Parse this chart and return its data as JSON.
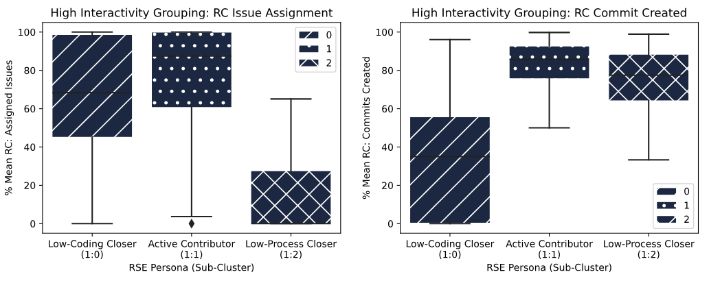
{
  "chart_data": [
    {
      "type": "box",
      "title": "High Interactivity Grouping: RC Issue Assignment",
      "xlabel": "RSE Persona (Sub-Cluster)",
      "ylabel": "% Mean RC: Assigned Issues",
      "categories": [
        "Low-Coding Closer\n(1:0)",
        "Active Contributor\n(1:1)",
        "Low-Process Closer\n(1:2)"
      ],
      "ylim": [
        -5,
        105
      ],
      "yticks": [
        0,
        20,
        40,
        60,
        80,
        100
      ],
      "legend": "top right",
      "grid": false,
      "series": [
        {
          "name": "0",
          "color": "#1c2841",
          "boxes": [
            {
              "low": 0,
              "q1": 45.3,
              "median": 68.4,
              "q3": 98.5,
              "high": 100
            },
            null,
            null
          ]
        },
        {
          "name": "1",
          "color": "#1c2841",
          "boxes": [
            null,
            {
              "low": 3.7,
              "q1": 60.8,
              "median": 87.5,
              "q3": 99.7,
              "high": 100,
              "outliers": [
                0
              ]
            },
            null
          ]
        },
        {
          "name": "2",
          "color": "#1c2841",
          "boxes": [
            null,
            null,
            {
              "low": 0,
              "q1": 0,
              "median": 0,
              "q3": 27.4,
              "high": 65.1
            }
          ]
        }
      ]
    },
    {
      "type": "box",
      "title": "High Interactivity Grouping: RC Commit Created",
      "xlabel": "RSE Persona (Sub-Cluster)",
      "ylabel": "% Mean RC: Commits Created",
      "categories": [
        "Low-Coding Closer\n(1:0)",
        "Active Contributor\n(1:1)",
        "Low-Process Closer\n(1:2)"
      ],
      "ylim": [
        -5,
        105
      ],
      "yticks": [
        0,
        20,
        40,
        60,
        80,
        100
      ],
      "legend": "bottom right",
      "grid": false,
      "series": [
        {
          "name": "0",
          "color": "#1c2841",
          "boxes": [
            {
              "low": 0,
              "q1": 0.5,
              "median": 35.0,
              "q3": 55.6,
              "high": 96.1
            },
            null,
            null
          ]
        },
        {
          "name": "1",
          "color": "#1c2841",
          "boxes": [
            null,
            {
              "low": 50.0,
              "q1": 75.9,
              "median": 85.7,
              "q3": 92.5,
              "high": 99.8
            },
            null
          ]
        },
        {
          "name": "2",
          "color": "#1c2841",
          "boxes": [
            null,
            null,
            {
              "low": 33.3,
              "q1": 64.3,
              "median": 77.5,
              "q3": 88.2,
              "high": 98.9
            }
          ]
        }
      ]
    }
  ]
}
